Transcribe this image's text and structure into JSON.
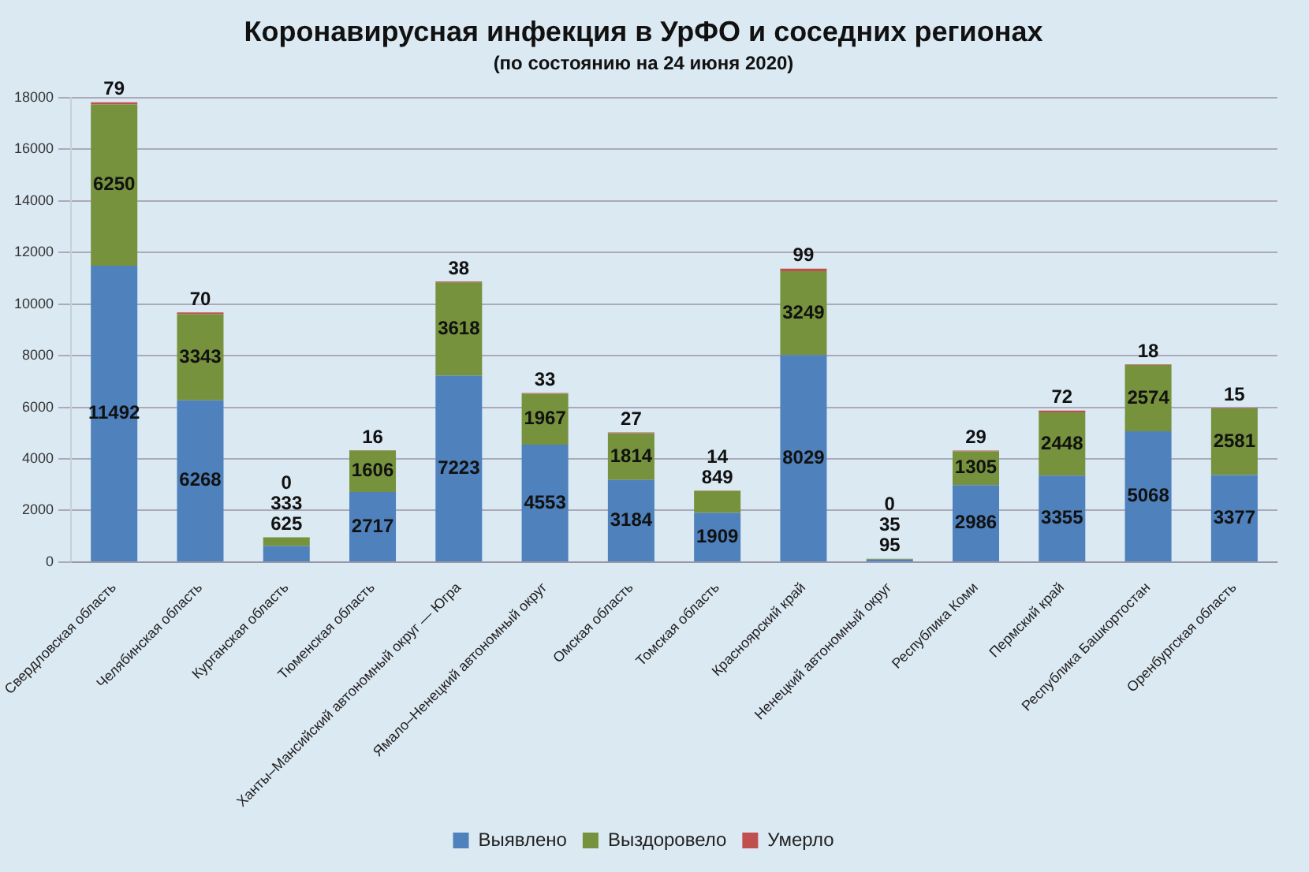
{
  "chart_data": {
    "type": "bar",
    "title": "Коронавирусная инфекция в УрФО и соседних регионах",
    "subtitle": "(по состоянию на 24 июня 2020)",
    "categories": [
      "Свердловская область",
      "Челябинская область",
      "Курганская область",
      "Тюменская область",
      "Ханты–Мансийский автономный округ — Югра",
      "Ямало–Ненецкий автономный округ",
      "Омская область",
      "Томская область",
      "Красноярский край",
      "Ненецкий автономный округ",
      "Республика Коми",
      "Пермский край",
      "Республика Башкортостан",
      "Оренбургская область"
    ],
    "series": [
      {
        "name": "Выявлено",
        "color": "#4f81bd",
        "values": [
          11492,
          6268,
          625,
          2717,
          7223,
          4553,
          3184,
          1909,
          8029,
          95,
          2986,
          3355,
          5068,
          3377
        ]
      },
      {
        "name": "Выздоровело",
        "color": "#76923c",
        "values": [
          6250,
          3343,
          333,
          1606,
          3618,
          1967,
          1814,
          849,
          3249,
          35,
          1305,
          2448,
          2574,
          2581
        ]
      },
      {
        "name": "Умерло",
        "color": "#c0504d",
        "values": [
          79,
          70,
          0,
          16,
          38,
          33,
          27,
          14,
          99,
          0,
          29,
          72,
          18,
          15
        ]
      }
    ],
    "stacked": true,
    "ylim": [
      0,
      18000
    ],
    "yticks": [
      0,
      2000,
      4000,
      6000,
      8000,
      10000,
      12000,
      14000,
      16000,
      18000
    ],
    "grid": "y",
    "legend": "bottom",
    "data_labels": true
  }
}
